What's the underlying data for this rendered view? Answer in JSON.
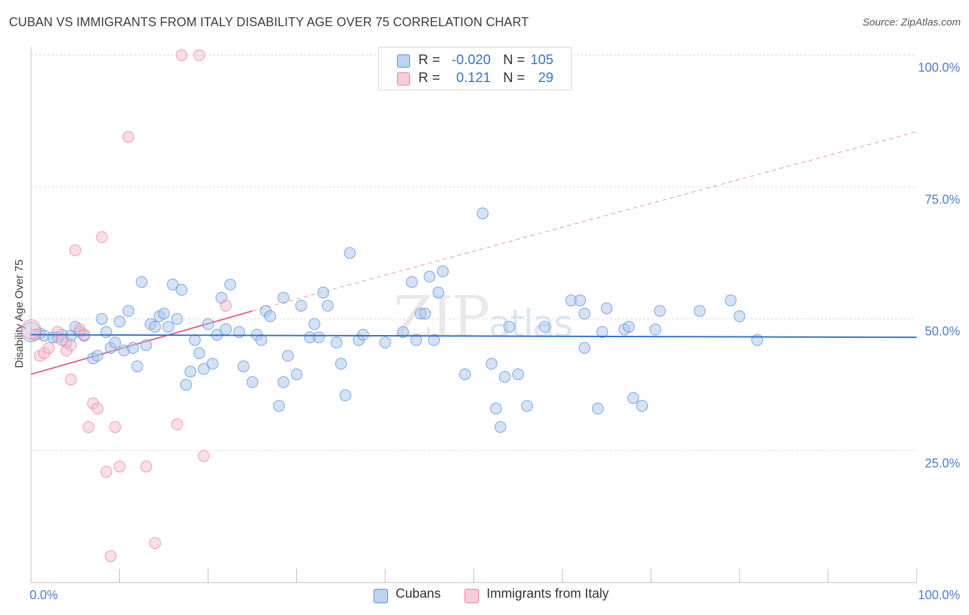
{
  "title": "CUBAN VS IMMIGRANTS FROM ITALY DISABILITY AGE OVER 75 CORRELATION CHART",
  "source": "Source: ZipAtlas.com",
  "colors": {
    "blue": "#5b8fd6",
    "blue_fill": "#a9c6ee",
    "blue_line": "#2a6fcc",
    "pink": "#e87fa0",
    "pink_fill": "#f6bfd0",
    "pink_line": "#e0608b",
    "tick_text": "#4a7fd0",
    "grid": "#d9d9d9"
  },
  "legend": {
    "rows": [
      {
        "r_label": "R =",
        "r_value": "-0.020",
        "n_label": "N =",
        "n_value": "105"
      },
      {
        "r_label": "R =",
        "r_value": "0.121",
        "n_label": "N =",
        "n_value": "29"
      }
    ]
  },
  "bottom_legend": {
    "items": [
      "Cubans",
      "Immigrants from Italy"
    ]
  },
  "chart_data": {
    "type": "scatter",
    "title": "CUBAN VS IMMIGRANTS FROM ITALY DISABILITY AGE OVER 75 CORRELATION CHART",
    "xlabel": "",
    "ylabel": "Disability Age Over 75",
    "xlim": [
      0,
      100
    ],
    "ylim": [
      0,
      100
    ],
    "x_tick_labels": [
      "0.0%",
      "100.0%"
    ],
    "y_tick_labels": [
      "25.0%",
      "50.0%",
      "75.0%",
      "100.0%"
    ],
    "y_ticks": [
      25,
      50,
      75,
      100
    ],
    "grid": true,
    "legend_position": "top-center",
    "watermark": "ZIPatlas",
    "series": [
      {
        "name": "Cubans",
        "r": -0.02,
        "n": 105,
        "trend": {
          "x": [
            0,
            100
          ],
          "y": [
            47.0,
            46.5
          ],
          "style": "solid"
        },
        "points": [
          [
            0.5,
            47.0
          ],
          [
            1.0,
            47.2
          ],
          [
            1.5,
            46.8
          ],
          [
            2.5,
            46.5
          ],
          [
            3.5,
            47.0
          ],
          [
            4.0,
            45.5
          ],
          [
            4.5,
            46.8
          ],
          [
            5.0,
            48.5
          ],
          [
            5.5,
            47.5
          ],
          [
            6.0,
            46.8
          ],
          [
            7.0,
            42.5
          ],
          [
            7.5,
            43.0
          ],
          [
            8.0,
            50.0
          ],
          [
            8.5,
            47.5
          ],
          [
            9.0,
            44.5
          ],
          [
            9.5,
            45.5
          ],
          [
            10.0,
            49.5
          ],
          [
            10.5,
            44.0
          ],
          [
            11.0,
            51.5
          ],
          [
            11.5,
            44.5
          ],
          [
            12.0,
            41.0
          ],
          [
            12.5,
            57.0
          ],
          [
            13.0,
            45.0
          ],
          [
            13.5,
            49.0
          ],
          [
            14.0,
            48.5
          ],
          [
            14.5,
            50.5
          ],
          [
            15.0,
            51.0
          ],
          [
            15.5,
            48.5
          ],
          [
            16.0,
            56.5
          ],
          [
            16.5,
            50.0
          ],
          [
            17.0,
            55.5
          ],
          [
            17.5,
            37.5
          ],
          [
            18.0,
            40.0
          ],
          [
            18.5,
            46.0
          ],
          [
            19.0,
            43.5
          ],
          [
            19.5,
            40.5
          ],
          [
            20.0,
            49.0
          ],
          [
            20.5,
            41.5
          ],
          [
            21.0,
            47.0
          ],
          [
            21.5,
            54.0
          ],
          [
            22.0,
            48.0
          ],
          [
            22.5,
            56.5
          ],
          [
            23.5,
            47.5
          ],
          [
            24.0,
            41.0
          ],
          [
            25.0,
            38.0
          ],
          [
            25.5,
            47.0
          ],
          [
            26.0,
            46.0
          ],
          [
            26.5,
            51.5
          ],
          [
            27.0,
            50.5
          ],
          [
            28.0,
            33.5
          ],
          [
            28.5,
            54.0
          ],
          [
            28.5,
            38.0
          ],
          [
            29.0,
            43.0
          ],
          [
            30.0,
            39.5
          ],
          [
            30.5,
            52.5
          ],
          [
            31.5,
            46.5
          ],
          [
            32.0,
            49.0
          ],
          [
            32.5,
            46.5
          ],
          [
            33.0,
            55.0
          ],
          [
            33.5,
            52.5
          ],
          [
            34.5,
            45.5
          ],
          [
            35.0,
            41.5
          ],
          [
            35.5,
            35.5
          ],
          [
            36.0,
            62.5
          ],
          [
            37.0,
            46.0
          ],
          [
            37.5,
            47.0
          ],
          [
            40.0,
            45.5
          ],
          [
            42.0,
            47.5
          ],
          [
            43.0,
            57.0
          ],
          [
            43.5,
            46.0
          ],
          [
            44.0,
            51.0
          ],
          [
            44.5,
            51.0
          ],
          [
            45.0,
            58.0
          ],
          [
            45.5,
            46.0
          ],
          [
            46.0,
            55.0
          ],
          [
            46.5,
            59.0
          ],
          [
            49.0,
            39.5
          ],
          [
            51.0,
            70.0
          ],
          [
            52.0,
            41.5
          ],
          [
            52.5,
            33.0
          ],
          [
            53.0,
            29.5
          ],
          [
            53.5,
            39.0
          ],
          [
            54.0,
            48.5
          ],
          [
            55.0,
            39.5
          ],
          [
            56.0,
            33.5
          ],
          [
            58.0,
            48.5
          ],
          [
            61.0,
            53.5
          ],
          [
            62.0,
            53.5
          ],
          [
            62.5,
            44.5
          ],
          [
            62.5,
            51.0
          ],
          [
            64.0,
            33.0
          ],
          [
            64.5,
            47.5
          ],
          [
            65.0,
            52.0
          ],
          [
            67.0,
            48.0
          ],
          [
            67.5,
            48.5
          ],
          [
            68.0,
            35.0
          ],
          [
            69.0,
            33.5
          ],
          [
            70.5,
            48.0
          ],
          [
            71.0,
            51.5
          ],
          [
            75.5,
            51.5
          ],
          [
            79.0,
            53.5
          ],
          [
            80.0,
            50.5
          ],
          [
            82.0,
            46.0
          ],
          [
            0.0,
            47.5
          ],
          [
            3.0,
            46.5
          ]
        ]
      },
      {
        "name": "Immigrants from Italy",
        "r": 0.121,
        "n": 29,
        "trend": {
          "x": [
            0,
            25
          ],
          "y": [
            39.5,
            51.5
          ],
          "style": "solid",
          "extension": {
            "x": [
              25,
              100
            ],
            "y": [
              51.5,
              85.5
            ],
            "style": "dashed"
          }
        },
        "points": [
          [
            0.5,
            47.0
          ],
          [
            1.0,
            43.0
          ],
          [
            1.5,
            43.5
          ],
          [
            2.0,
            44.5
          ],
          [
            3.0,
            47.5
          ],
          [
            3.5,
            46.0
          ],
          [
            4.0,
            44.0
          ],
          [
            4.5,
            45.0
          ],
          [
            4.5,
            38.5
          ],
          [
            5.0,
            63.0
          ],
          [
            5.5,
            48.0
          ],
          [
            6.0,
            47.0
          ],
          [
            6.5,
            29.5
          ],
          [
            7.0,
            34.0
          ],
          [
            7.5,
            33.0
          ],
          [
            8.0,
            65.5
          ],
          [
            8.5,
            21.0
          ],
          [
            9.0,
            5.0
          ],
          [
            9.5,
            29.5
          ],
          [
            10.0,
            22.0
          ],
          [
            11.0,
            84.5
          ],
          [
            13.0,
            22.0
          ],
          [
            14.0,
            7.5
          ],
          [
            16.5,
            30.0
          ],
          [
            17.0,
            100.0
          ],
          [
            19.0,
            100.0
          ],
          [
            19.5,
            24.0
          ],
          [
            22.0,
            52.5
          ],
          [
            0.0,
            48.0
          ]
        ]
      }
    ]
  }
}
